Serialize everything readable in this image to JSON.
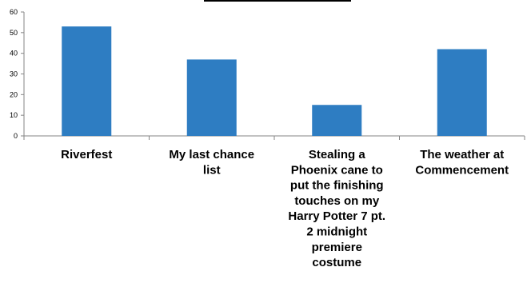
{
  "chart_data": {
    "type": "bar",
    "title": "",
    "xlabel": "",
    "ylabel": "",
    "categories": [
      [
        "Riverfest"
      ],
      [
        "My last chance",
        "list"
      ],
      [
        "Stealing a",
        "Phoenix cane to",
        "put the finishing",
        "touches on my",
        "Harry Potter 7 pt.",
        "2 midnight",
        "premiere",
        "costume"
      ],
      [
        "The weather at",
        "Commencement"
      ]
    ],
    "values": [
      53,
      37,
      15,
      42
    ],
    "ylim": [
      0,
      60
    ],
    "yticks": [
      0,
      10,
      20,
      30,
      40,
      50,
      60
    ],
    "grid": false,
    "legend": "none",
    "colors": {
      "bar": "#2e7dc2",
      "axis": "#868686",
      "text": "#000000"
    }
  }
}
